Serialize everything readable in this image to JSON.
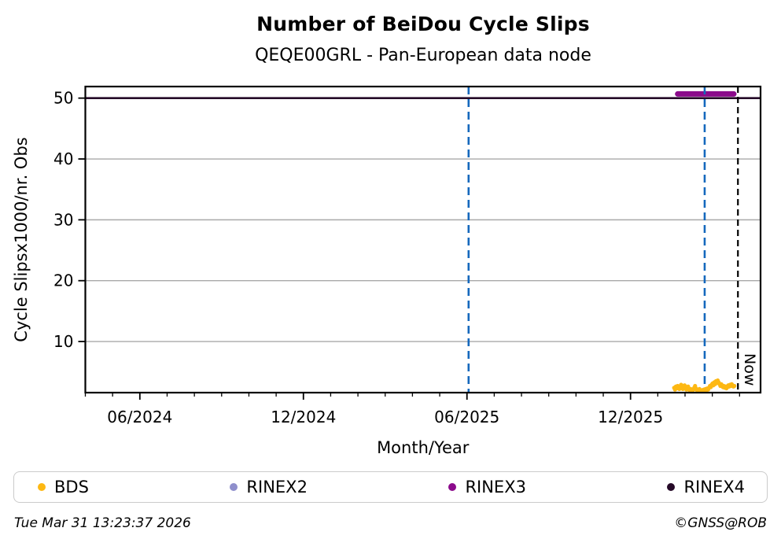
{
  "figure": {
    "title": "Number of BeiDou Cycle Slips",
    "subtitle": "QEQE00GRL - Pan-European data node",
    "footer_left": "Tue Mar 31 13:23:37 2026",
    "footer_right": "©GNSS@ROB"
  },
  "colors": {
    "bds": "#fdb813",
    "rinex2": "#8f8fcc",
    "rinex3": "#8b0a8b",
    "rinex4": "#250a28",
    "event_line_blue": "#1568bd",
    "now_line_black": "#000000",
    "grid": "#a9a9a9",
    "frame": "#000000",
    "legend_border": "#cbcbcb"
  },
  "chart_data": {
    "type": "scatter",
    "title": "Number of BeiDou Cycle Slips",
    "subtitle": "QEQE00GRL - Pan-European data node",
    "xlabel": "Month/Year",
    "ylabel": "Cycle Slipsx1000/nr. Obs",
    "x_unit": "months since 2024-04",
    "xlim": [
      0,
      24.77
    ],
    "ylim": [
      1.6,
      51.9
    ],
    "yticks": [
      10,
      20,
      30,
      40,
      50
    ],
    "xticks_major": [
      {
        "pos": 2,
        "label": "06/2024"
      },
      {
        "pos": 8,
        "label": "12/2024"
      },
      {
        "pos": 14,
        "label": "06/2025"
      },
      {
        "pos": 20,
        "label": "12/2025"
      }
    ],
    "xticks_minor_step": 1,
    "grid": {
      "horizontal": true,
      "vertical": false
    },
    "event_lines": [
      {
        "pos": 14.06,
        "style": "dashed",
        "color_key": "event_line_blue"
      },
      {
        "pos": 22.72,
        "style": "dashed",
        "color_key": "event_line_blue"
      }
    ],
    "now_line": {
      "pos": 23.94,
      "label": "Now",
      "style": "dashed",
      "color_key": "now_line_black"
    },
    "series": [
      {
        "name": "BDS",
        "kind": "scatter",
        "color_key": "bds",
        "marker_radius": 2.6,
        "points": [
          [
            21.6,
            2.4
          ],
          [
            21.632,
            2.1
          ],
          [
            21.664,
            2.6
          ],
          [
            21.696,
            2.3
          ],
          [
            21.728,
            2.7
          ],
          [
            21.76,
            2.4
          ],
          [
            21.792,
            2.2
          ],
          [
            21.824,
            2.6
          ],
          [
            21.856,
            2.9
          ],
          [
            21.888,
            2.5
          ],
          [
            21.92,
            2.2
          ],
          [
            21.952,
            2.5
          ],
          [
            21.984,
            2.8
          ],
          [
            22.016,
            2.4
          ],
          [
            22.048,
            2.1
          ],
          [
            22.08,
            2.3
          ],
          [
            22.112,
            2.6
          ],
          [
            22.144,
            2.2
          ],
          [
            22.176,
            1.9
          ],
          [
            22.208,
            2.2
          ],
          [
            22.24,
            2.0
          ],
          [
            22.272,
            1.8
          ],
          [
            22.304,
            2.1
          ],
          [
            22.336,
            2.4
          ],
          [
            22.368,
            2.7
          ],
          [
            22.4,
            2.3
          ],
          [
            22.432,
            2.0
          ],
          [
            22.464,
            1.8
          ],
          [
            22.496,
            2.0
          ],
          [
            22.528,
            2.2
          ],
          [
            22.56,
            1.9
          ],
          [
            22.592,
            1.7
          ],
          [
            22.624,
            2.0
          ],
          [
            22.656,
            1.8
          ],
          [
            22.688,
            2.1
          ],
          [
            22.72,
            1.9
          ],
          [
            22.752,
            2.2
          ],
          [
            22.784,
            2.0
          ],
          [
            22.816,
            2.3
          ],
          [
            22.848,
            2.1
          ],
          [
            22.88,
            2.4
          ],
          [
            22.912,
            2.7
          ],
          [
            22.944,
            2.5
          ],
          [
            22.976,
            2.9
          ],
          [
            23.008,
            3.1
          ],
          [
            23.04,
            2.8
          ],
          [
            23.072,
            3.3
          ],
          [
            23.104,
            3.0
          ],
          [
            23.136,
            3.5
          ],
          [
            23.168,
            3.2
          ],
          [
            23.2,
            3.6
          ],
          [
            23.232,
            3.3
          ],
          [
            23.264,
            3.0
          ],
          [
            23.296,
            2.7
          ],
          [
            23.328,
            3.0
          ],
          [
            23.36,
            2.8
          ],
          [
            23.392,
            2.5
          ],
          [
            23.424,
            2.7
          ],
          [
            23.456,
            2.4
          ],
          [
            23.488,
            2.6
          ],
          [
            23.52,
            2.3
          ],
          [
            23.552,
            2.5
          ],
          [
            23.584,
            2.8
          ],
          [
            23.616,
            2.6
          ],
          [
            23.648,
            2.9
          ],
          [
            23.68,
            2.7
          ],
          [
            23.712,
            3.0
          ],
          [
            23.744,
            2.8
          ],
          [
            23.776,
            2.6
          ],
          [
            23.808,
            2.7
          ]
        ]
      },
      {
        "name": "RINEX2",
        "kind": "line",
        "color_key": "rinex2",
        "linewidth": 7,
        "points": []
      },
      {
        "name": "RINEX3",
        "kind": "line",
        "color_key": "rinex3",
        "linewidth": 7,
        "points": [
          [
            21.73,
            50.68
          ],
          [
            23.79,
            50.68
          ]
        ]
      },
      {
        "name": "RINEX4",
        "kind": "line",
        "color_key": "rinex4",
        "linewidth": 2.6,
        "points": [
          [
            0,
            50.0
          ],
          [
            24.77,
            50.0
          ]
        ]
      }
    ],
    "legend": {
      "position": "bottom",
      "entries": [
        "BDS",
        "RINEX2",
        "RINEX3",
        "RINEX4"
      ]
    }
  }
}
